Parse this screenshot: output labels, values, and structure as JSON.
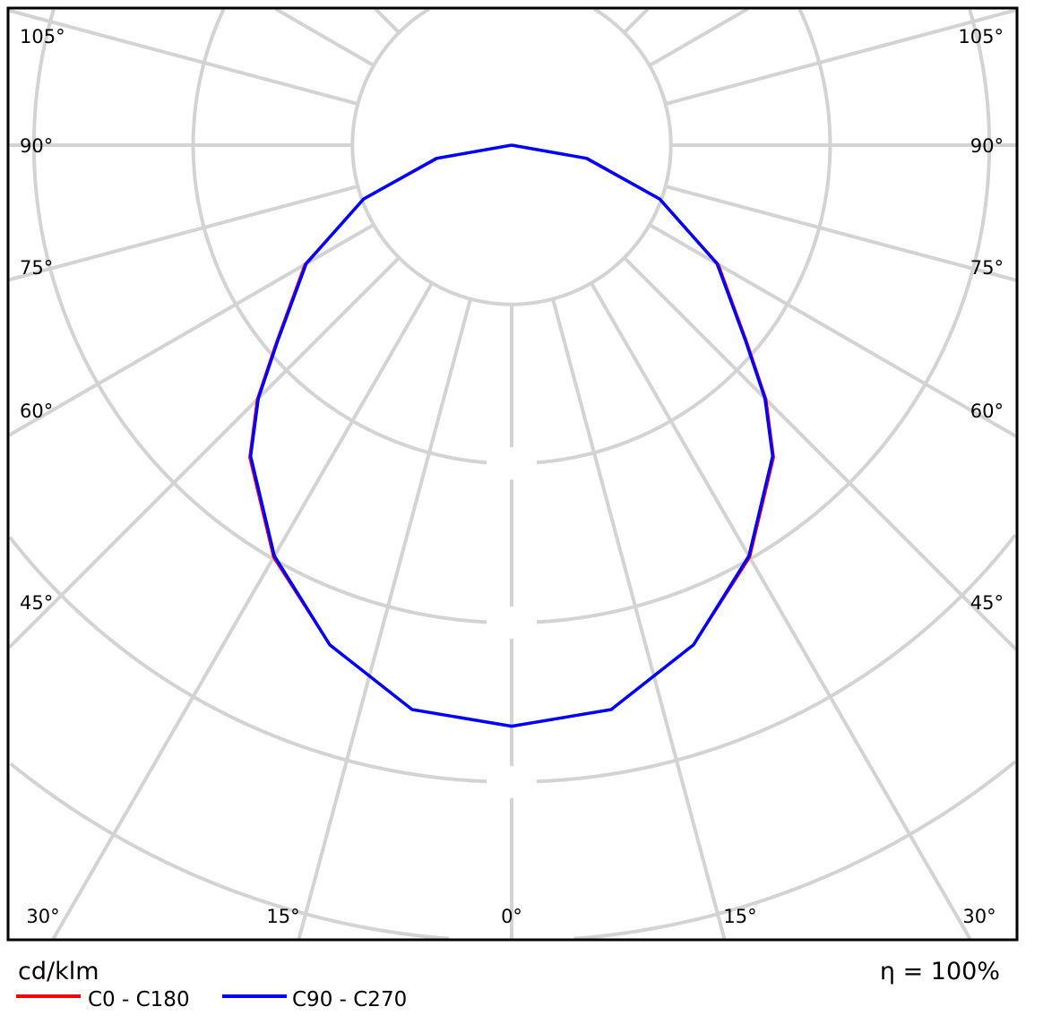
{
  "chart_data": {
    "type": "polar",
    "unit_label": "cd/klm",
    "efficiency_label": "η = 100%",
    "angle_labels_left": [
      "105°",
      "90°",
      "75°",
      "60°",
      "45°"
    ],
    "angle_labels_bottom": [
      "30°",
      "15°",
      "0°",
      "15°",
      "30°"
    ],
    "angle_labels_right": [
      "105°",
      "90°",
      "75°",
      "60°",
      "45°"
    ],
    "radial_grid_step_deg": 15,
    "ring_count": 6,
    "radial_scale_note_hidden": true,
    "gamma_deg": [
      0,
      10,
      20,
      30,
      40,
      45,
      50,
      60,
      70,
      80,
      90
    ],
    "series": [
      {
        "name": "C0 - C180",
        "color": "#ff0000",
        "values": [
          3.65,
          3.6,
          3.34,
          2.99,
          2.56,
          2.26,
          1.93,
          1.5,
          0.99,
          0.47,
          0
        ]
      },
      {
        "name": "C90 - C270",
        "color": "#0000ff",
        "values": [
          3.65,
          3.6,
          3.34,
          2.98,
          2.55,
          2.25,
          1.92,
          1.49,
          0.99,
          0.48,
          0
        ]
      }
    ],
    "grid": true,
    "legend_position": "bottom-left"
  }
}
